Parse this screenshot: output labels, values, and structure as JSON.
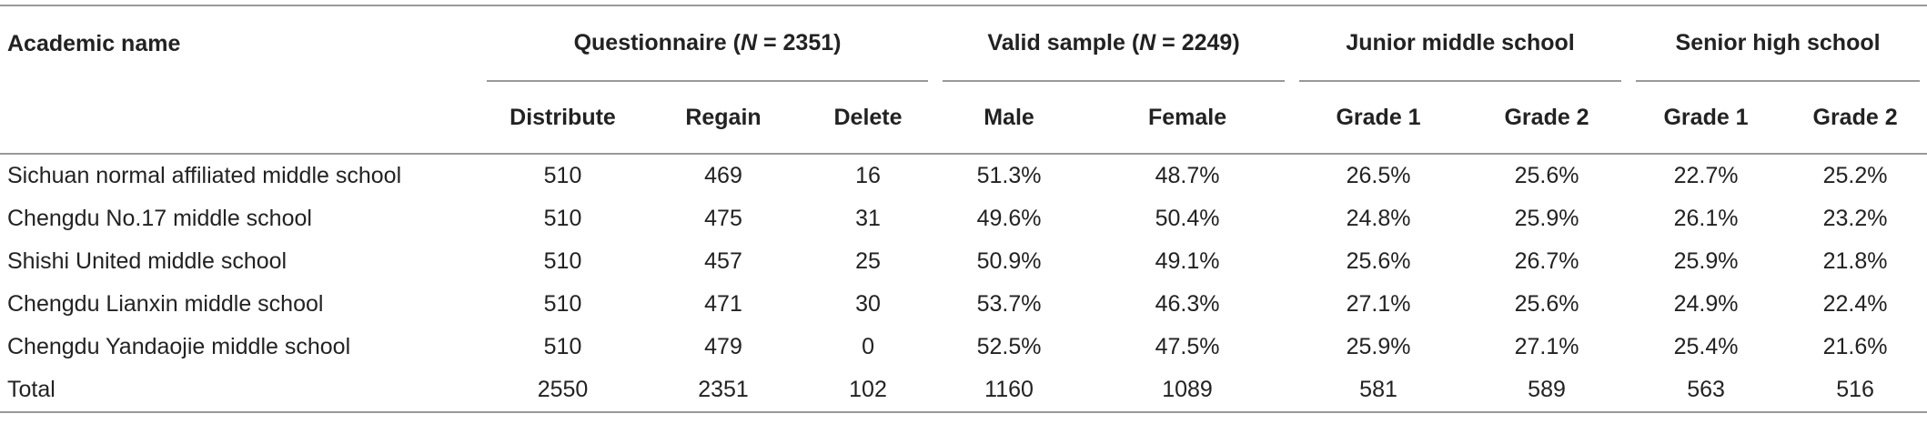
{
  "table": {
    "corner": "Academic name",
    "groups": [
      {
        "parts": [
          "Questionnaire (",
          "N",
          " = 2351)"
        ],
        "span": 3
      },
      {
        "parts": [
          "Valid sample (",
          "N",
          " = 2249)"
        ],
        "span": 2
      },
      {
        "parts": [
          "Junior middle school"
        ],
        "span": 2
      },
      {
        "parts": [
          "Senior high school"
        ],
        "span": 2
      }
    ],
    "columns": [
      "Distribute",
      "Regain",
      "Delete",
      "Male",
      "Female",
      "Grade 1",
      "Grade 2",
      "Grade 1",
      "Grade 2"
    ],
    "rows": [
      [
        "Sichuan normal affiliated middle school",
        "510",
        "469",
        "16",
        "51.3%",
        "48.7%",
        "26.5%",
        "25.6%",
        "22.7%",
        "25.2%"
      ],
      [
        "Chengdu No.17 middle school",
        "510",
        "475",
        "31",
        "49.6%",
        "50.4%",
        "24.8%",
        "25.9%",
        "26.1%",
        "23.2%"
      ],
      [
        "Shishi United middle school",
        "510",
        "457",
        "25",
        "50.9%",
        "49.1%",
        "25.6%",
        "26.7%",
        "25.9%",
        "21.8%"
      ],
      [
        "Chengdu Lianxin middle school",
        "510",
        "471",
        "30",
        "53.7%",
        "46.3%",
        "27.1%",
        "25.6%",
        "24.9%",
        "22.4%"
      ],
      [
        "Chengdu Yandaojie middle school",
        "510",
        "479",
        "0",
        "52.5%",
        "47.5%",
        "25.9%",
        "27.1%",
        "25.4%",
        "21.6%"
      ],
      [
        "Total",
        "2550",
        "2351",
        "102",
        "1160",
        "1089",
        "581",
        "589",
        "563",
        "516"
      ]
    ]
  }
}
